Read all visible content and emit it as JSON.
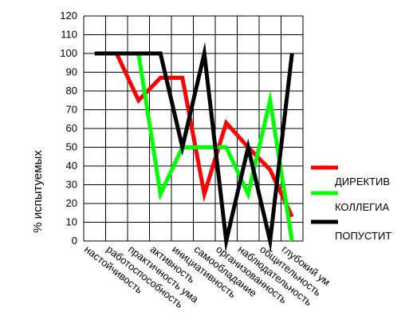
{
  "chart_data": {
    "type": "line",
    "ylabel": "% испытуемых",
    "ylim": [
      0,
      120
    ],
    "ytick_step": 10,
    "grid": true,
    "legend_position": "right",
    "categories": [
      "настойчивость",
      "работоспособность",
      "практичность ума",
      "активность",
      "инициативность",
      "самообладание",
      "организованность",
      "наблюдательность",
      "общительность",
      "глубокий ум"
    ],
    "series": [
      {
        "name": "ДИРЕКТИВ",
        "color": "#ff0000",
        "values": [
          100,
          100,
          75,
          87,
          87,
          25,
          63,
          50,
          38,
          13
        ]
      },
      {
        "name": "КОЛЛЕГИА",
        "color": "#00ff00",
        "values": [
          100,
          100,
          100,
          25,
          50,
          50,
          50,
          25,
          75,
          0
        ]
      },
      {
        "name": "ПОПУСТИТ",
        "color": "#000000",
        "values": [
          100,
          100,
          100,
          100,
          50,
          100,
          0,
          50,
          0,
          100
        ]
      }
    ]
  }
}
